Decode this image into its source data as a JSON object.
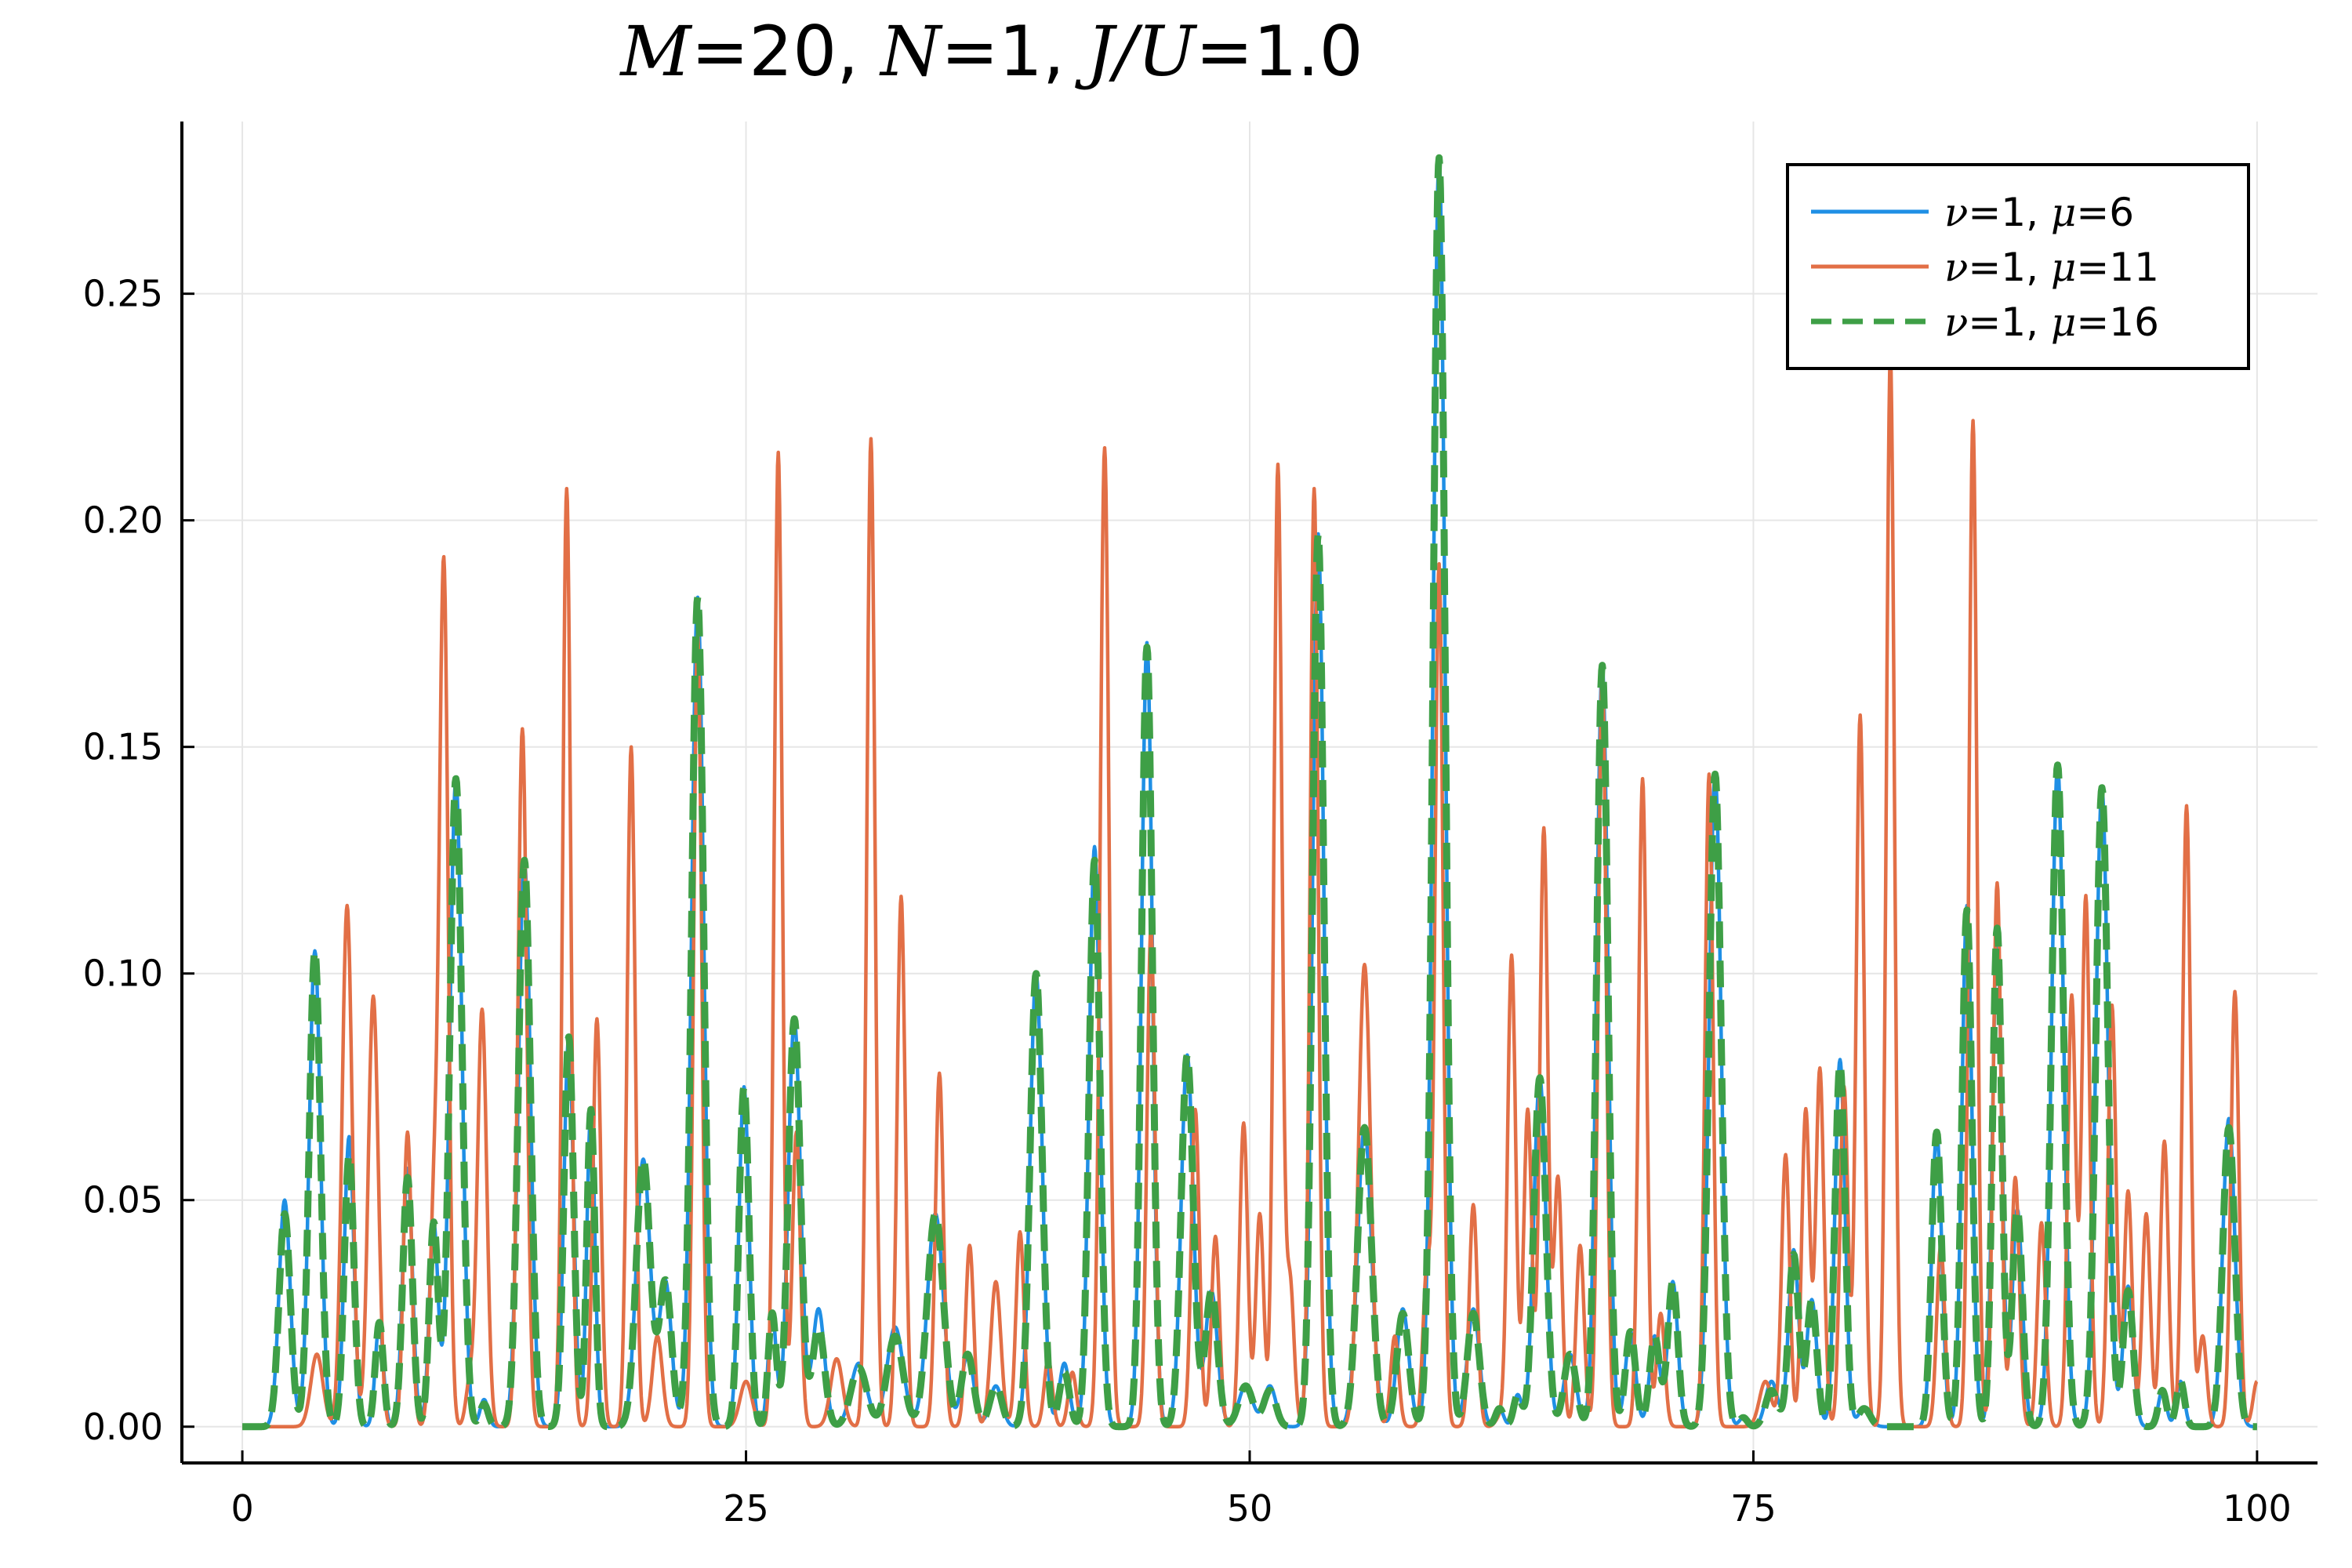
{
  "chart_data": {
    "type": "line",
    "title": {
      "parts": [
        {
          "var": "M",
          "text": "=20, "
        },
        {
          "var": "N",
          "text": "=1, "
        },
        {
          "var": "J/U",
          "text": "=1.0"
        }
      ]
    },
    "xlabel": "",
    "ylabel": "",
    "xlim": [
      -3,
      103
    ],
    "ylim": [
      -0.008,
      0.288
    ],
    "x_ticks": [
      0,
      25,
      50,
      75,
      100
    ],
    "x_tick_labels": [
      "0",
      "25",
      "50",
      "75",
      "100"
    ],
    "y_ticks": [
      0.0,
      0.05,
      0.1,
      0.15,
      0.2,
      0.25
    ],
    "y_tick_labels": [
      "0.00",
      "0.05",
      "0.10",
      "0.15",
      "0.20",
      "0.25"
    ],
    "grid": true,
    "legend_position": "top-right",
    "series": [
      {
        "name": "ν=1, μ=6",
        "legend_var": "ν",
        "legend_mid": "=1, ",
        "legend_var2": "μ",
        "legend_end": "=6",
        "color": "#1f8fe5",
        "style": "solid",
        "width": 4.5,
        "peaks": [
          [
            2.1,
            0.05,
            0.28
          ],
          [
            3.6,
            0.105,
            0.28
          ],
          [
            5.3,
            0.064,
            0.24
          ],
          [
            6.8,
            0.023,
            0.2
          ],
          [
            8.2,
            0.057,
            0.24
          ],
          [
            9.5,
            0.045,
            0.22
          ],
          [
            10.6,
            0.143,
            0.3
          ],
          [
            12,
            0.006,
            0.2
          ],
          [
            14,
            0.125,
            0.3
          ],
          [
            16.2,
            0.086,
            0.24
          ],
          [
            17.3,
            0.07,
            0.2
          ],
          [
            19.9,
            0.059,
            0.35
          ],
          [
            21,
            0.032,
            0.3
          ],
          [
            22.6,
            0.183,
            0.3
          ],
          [
            24.9,
            0.075,
            0.25
          ],
          [
            26.3,
            0.025,
            0.2
          ],
          [
            27.4,
            0.09,
            0.3
          ],
          [
            28.6,
            0.026,
            0.3
          ],
          [
            30.6,
            0.014,
            0.4
          ],
          [
            32.4,
            0.022,
            0.4
          ],
          [
            34.4,
            0.047,
            0.4
          ],
          [
            36,
            0.016,
            0.3
          ],
          [
            37.4,
            0.009,
            0.3
          ],
          [
            39.4,
            0.1,
            0.3
          ],
          [
            40.8,
            0.014,
            0.25
          ],
          [
            42.3,
            0.128,
            0.27
          ],
          [
            44.9,
            0.173,
            0.27
          ],
          [
            46.9,
            0.082,
            0.3
          ],
          [
            48.1,
            0.03,
            0.3
          ],
          [
            49.8,
            0.009,
            0.35
          ],
          [
            51,
            0.009,
            0.3
          ],
          [
            53.4,
            0.197,
            0.28
          ],
          [
            55.7,
            0.066,
            0.35
          ],
          [
            57.6,
            0.026,
            0.3
          ],
          [
            59.4,
            0.28,
            0.3
          ],
          [
            61.1,
            0.026,
            0.3
          ],
          [
            62.4,
            0.004,
            0.2
          ],
          [
            63.3,
            0.007,
            0.2
          ],
          [
            64.4,
            0.077,
            0.3
          ],
          [
            65.9,
            0.016,
            0.3
          ],
          [
            67.5,
            0.168,
            0.28
          ],
          [
            68.9,
            0.021,
            0.25
          ],
          [
            70.1,
            0.02,
            0.25
          ],
          [
            71,
            0.032,
            0.25
          ],
          [
            73.1,
            0.144,
            0.3
          ],
          [
            74.5,
            0.002,
            0.2
          ],
          [
            75.9,
            0.01,
            0.3
          ],
          [
            77,
            0.039,
            0.25
          ],
          [
            77.9,
            0.028,
            0.25
          ],
          [
            79.3,
            0.081,
            0.25
          ],
          [
            80.5,
            0.004,
            0.3
          ],
          [
            84.1,
            0.065,
            0.25
          ],
          [
            85.6,
            0.115,
            0.25
          ],
          [
            87.1,
            0.11,
            0.23
          ],
          [
            88.1,
            0.048,
            0.25
          ],
          [
            90.1,
            0.146,
            0.3
          ],
          [
            92.3,
            0.141,
            0.3
          ],
          [
            93.6,
            0.031,
            0.25
          ],
          [
            95.3,
            0.008,
            0.2
          ],
          [
            96.2,
            0.01,
            0.2
          ],
          [
            98.6,
            0.068,
            0.3
          ]
        ]
      },
      {
        "name": "ν=1, μ=11",
        "legend_var": "ν",
        "legend_mid": "=1, ",
        "legend_var2": "μ",
        "legend_end": "=11",
        "color": "#e26f46",
        "style": "solid",
        "width": 4.5,
        "peaks": [
          [
            3.7,
            0.016,
            0.3
          ],
          [
            5.2,
            0.115,
            0.25
          ],
          [
            6.5,
            0.095,
            0.25
          ],
          [
            8.2,
            0.065,
            0.2
          ],
          [
            9.5,
            0.045,
            0.2
          ],
          [
            10,
            0.19,
            0.22
          ],
          [
            11.3,
            0.01,
            0.2
          ],
          [
            11.9,
            0.092,
            0.23
          ],
          [
            13.9,
            0.154,
            0.22
          ],
          [
            16.1,
            0.207,
            0.2
          ],
          [
            17.6,
            0.09,
            0.2
          ],
          [
            19.3,
            0.15,
            0.2
          ],
          [
            20.6,
            0.02,
            0.25
          ],
          [
            22.6,
            0.175,
            0.2
          ],
          [
            25,
            0.01,
            0.3
          ],
          [
            26.6,
            0.215,
            0.2
          ],
          [
            27.5,
            0.065,
            0.2
          ],
          [
            29.5,
            0.015,
            0.3
          ],
          [
            31.2,
            0.218,
            0.2
          ],
          [
            32.7,
            0.117,
            0.2
          ],
          [
            34.6,
            0.078,
            0.2
          ],
          [
            36.1,
            0.04,
            0.2
          ],
          [
            37.4,
            0.032,
            0.25
          ],
          [
            38.6,
            0.043,
            0.2
          ],
          [
            40,
            0.015,
            0.2
          ],
          [
            41.2,
            0.012,
            0.2
          ],
          [
            42.8,
            0.216,
            0.22
          ],
          [
            45.1,
            0.11,
            0.2
          ],
          [
            47.3,
            0.07,
            0.2
          ],
          [
            48.3,
            0.042,
            0.2
          ],
          [
            49.7,
            0.067,
            0.2
          ],
          [
            50.5,
            0.047,
            0.2
          ],
          [
            51.4,
            0.212,
            0.2
          ],
          [
            52,
            0.032,
            0.2
          ],
          [
            53.2,
            0.207,
            0.2
          ],
          [
            55.7,
            0.102,
            0.3
          ],
          [
            57.2,
            0.02,
            0.2
          ],
          [
            58.8,
            0.035,
            0.2
          ],
          [
            59.4,
            0.19,
            0.2
          ],
          [
            61.1,
            0.049,
            0.2
          ],
          [
            62.4,
            0.002,
            0.2
          ],
          [
            63,
            0.104,
            0.2
          ],
          [
            63.8,
            0.07,
            0.2
          ],
          [
            64.6,
            0.132,
            0.2
          ],
          [
            65.3,
            0.055,
            0.2
          ],
          [
            66.4,
            0.04,
            0.2
          ],
          [
            67.5,
            0.167,
            0.2
          ],
          [
            69.5,
            0.143,
            0.2
          ],
          [
            70.4,
            0.025,
            0.2
          ],
          [
            72.8,
            0.144,
            0.2
          ],
          [
            75.6,
            0.01,
            0.3
          ],
          [
            76.6,
            0.06,
            0.2
          ],
          [
            77.6,
            0.07,
            0.2
          ],
          [
            78.3,
            0.079,
            0.2
          ],
          [
            79.5,
            0.075,
            0.2
          ],
          [
            80.3,
            0.157,
            0.2
          ],
          [
            81.8,
            0.236,
            0.2
          ],
          [
            84.3,
            0.04,
            0.2
          ],
          [
            85.9,
            0.222,
            0.2
          ],
          [
            87.1,
            0.12,
            0.2
          ],
          [
            88,
            0.055,
            0.2
          ],
          [
            89.3,
            0.045,
            0.2
          ],
          [
            90.8,
            0.095,
            0.2
          ],
          [
            91.5,
            0.117,
            0.2
          ],
          [
            92.8,
            0.093,
            0.2
          ],
          [
            93.6,
            0.052,
            0.2
          ],
          [
            94.5,
            0.047,
            0.2
          ],
          [
            95.4,
            0.063,
            0.2
          ],
          [
            96.5,
            0.137,
            0.2
          ],
          [
            97.3,
            0.02,
            0.2
          ],
          [
            98.9,
            0.096,
            0.2
          ],
          [
            100,
            0.01,
            0.2
          ]
        ]
      },
      {
        "name": "ν=1, μ=16",
        "legend_var": "ν",
        "legend_mid": "=1, ",
        "legend_var2": "μ",
        "legend_end": "=16",
        "color": "#3e9f46",
        "style": "dashed",
        "width": 9,
        "peaks": [
          [
            2.1,
            0.047,
            0.28
          ],
          [
            3.6,
            0.105,
            0.28
          ],
          [
            5.3,
            0.06,
            0.24
          ],
          [
            6.8,
            0.023,
            0.2
          ],
          [
            8.2,
            0.055,
            0.24
          ],
          [
            9.5,
            0.045,
            0.22
          ],
          [
            10.6,
            0.143,
            0.3
          ],
          [
            12,
            0.005,
            0.2
          ],
          [
            14,
            0.125,
            0.3
          ],
          [
            16.2,
            0.086,
            0.24
          ],
          [
            17.3,
            0.07,
            0.2
          ],
          [
            19.9,
            0.059,
            0.35
          ],
          [
            21,
            0.032,
            0.3
          ],
          [
            22.6,
            0.183,
            0.3
          ],
          [
            24.9,
            0.075,
            0.25
          ],
          [
            26.3,
            0.025,
            0.2
          ],
          [
            27.4,
            0.09,
            0.3
          ],
          [
            28.6,
            0.022,
            0.3
          ],
          [
            30.6,
            0.013,
            0.4
          ],
          [
            32.4,
            0.02,
            0.4
          ],
          [
            34.4,
            0.047,
            0.4
          ],
          [
            36,
            0.016,
            0.3
          ],
          [
            37.4,
            0.009,
            0.3
          ],
          [
            39.4,
            0.1,
            0.3
          ],
          [
            40.8,
            0.012,
            0.25
          ],
          [
            42.3,
            0.125,
            0.27
          ],
          [
            44.9,
            0.172,
            0.27
          ],
          [
            46.9,
            0.082,
            0.3
          ],
          [
            48.1,
            0.03,
            0.3
          ],
          [
            49.8,
            0.009,
            0.35
          ],
          [
            51,
            0.008,
            0.3
          ],
          [
            53.4,
            0.197,
            0.28
          ],
          [
            55.7,
            0.066,
            0.35
          ],
          [
            57.6,
            0.025,
            0.3
          ],
          [
            59.4,
            0.28,
            0.3
          ],
          [
            61.1,
            0.025,
            0.3
          ],
          [
            62.4,
            0.004,
            0.2
          ],
          [
            63.3,
            0.007,
            0.2
          ],
          [
            64.4,
            0.077,
            0.3
          ],
          [
            65.9,
            0.016,
            0.3
          ],
          [
            67.5,
            0.168,
            0.28
          ],
          [
            68.9,
            0.021,
            0.25
          ],
          [
            70.1,
            0.02,
            0.25
          ],
          [
            71,
            0.032,
            0.25
          ],
          [
            73.1,
            0.144,
            0.3
          ],
          [
            74.5,
            0.002,
            0.2
          ],
          [
            75.9,
            0.008,
            0.3
          ],
          [
            77,
            0.038,
            0.25
          ],
          [
            77.9,
            0.028,
            0.25
          ],
          [
            79.3,
            0.08,
            0.25
          ],
          [
            80.5,
            0.004,
            0.3
          ],
          [
            84.1,
            0.065,
            0.25
          ],
          [
            85.6,
            0.114,
            0.25
          ],
          [
            87.1,
            0.11,
            0.23
          ],
          [
            88.1,
            0.048,
            0.25
          ],
          [
            90.1,
            0.146,
            0.3
          ],
          [
            92.3,
            0.141,
            0.3
          ],
          [
            93.6,
            0.03,
            0.25
          ],
          [
            95.3,
            0.008,
            0.2
          ],
          [
            96.2,
            0.01,
            0.2
          ],
          [
            98.6,
            0.066,
            0.3
          ]
        ]
      }
    ]
  }
}
